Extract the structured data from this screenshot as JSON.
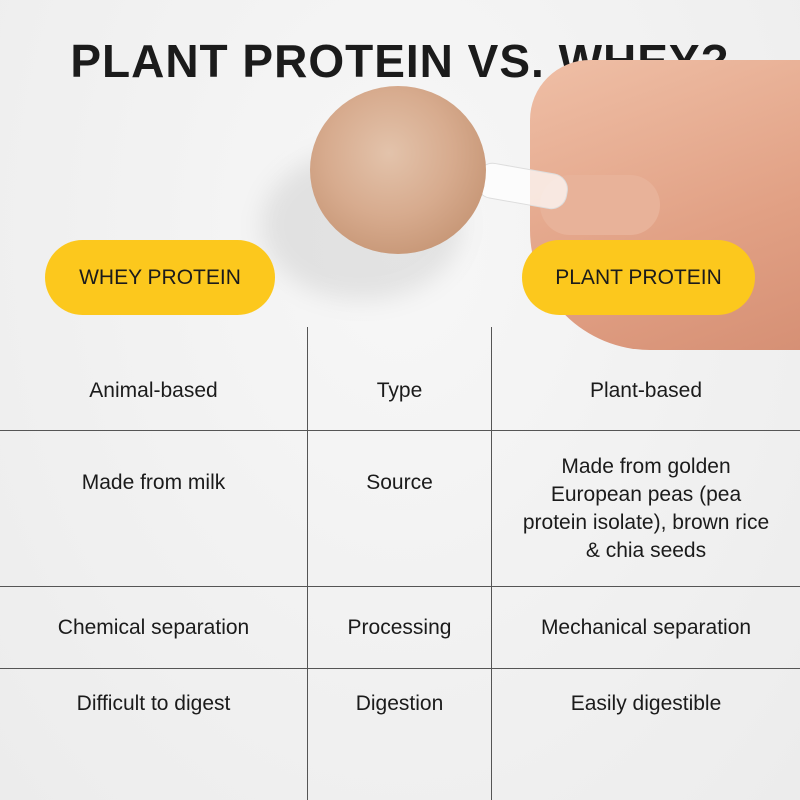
{
  "title": "PLANT PROTEIN VS. WHEY?",
  "pills": {
    "left": "WHEY PROTEIN",
    "right": "PLANT PROTEIN",
    "color": "#fcc81d"
  },
  "rows": [
    {
      "whey": "Animal-based",
      "category": "Type",
      "plant": "Plant-based"
    },
    {
      "whey": "Made from milk",
      "category": "Source",
      "plant": "Made from golden European peas (pea protein isolate), brown rice & chia seeds"
    },
    {
      "whey": "Chemical separation",
      "category": "Processing",
      "plant": "Mechanical separation"
    },
    {
      "whey": "Difficult to digest",
      "category": "Digestion",
      "plant": "Easily digestible"
    }
  ]
}
